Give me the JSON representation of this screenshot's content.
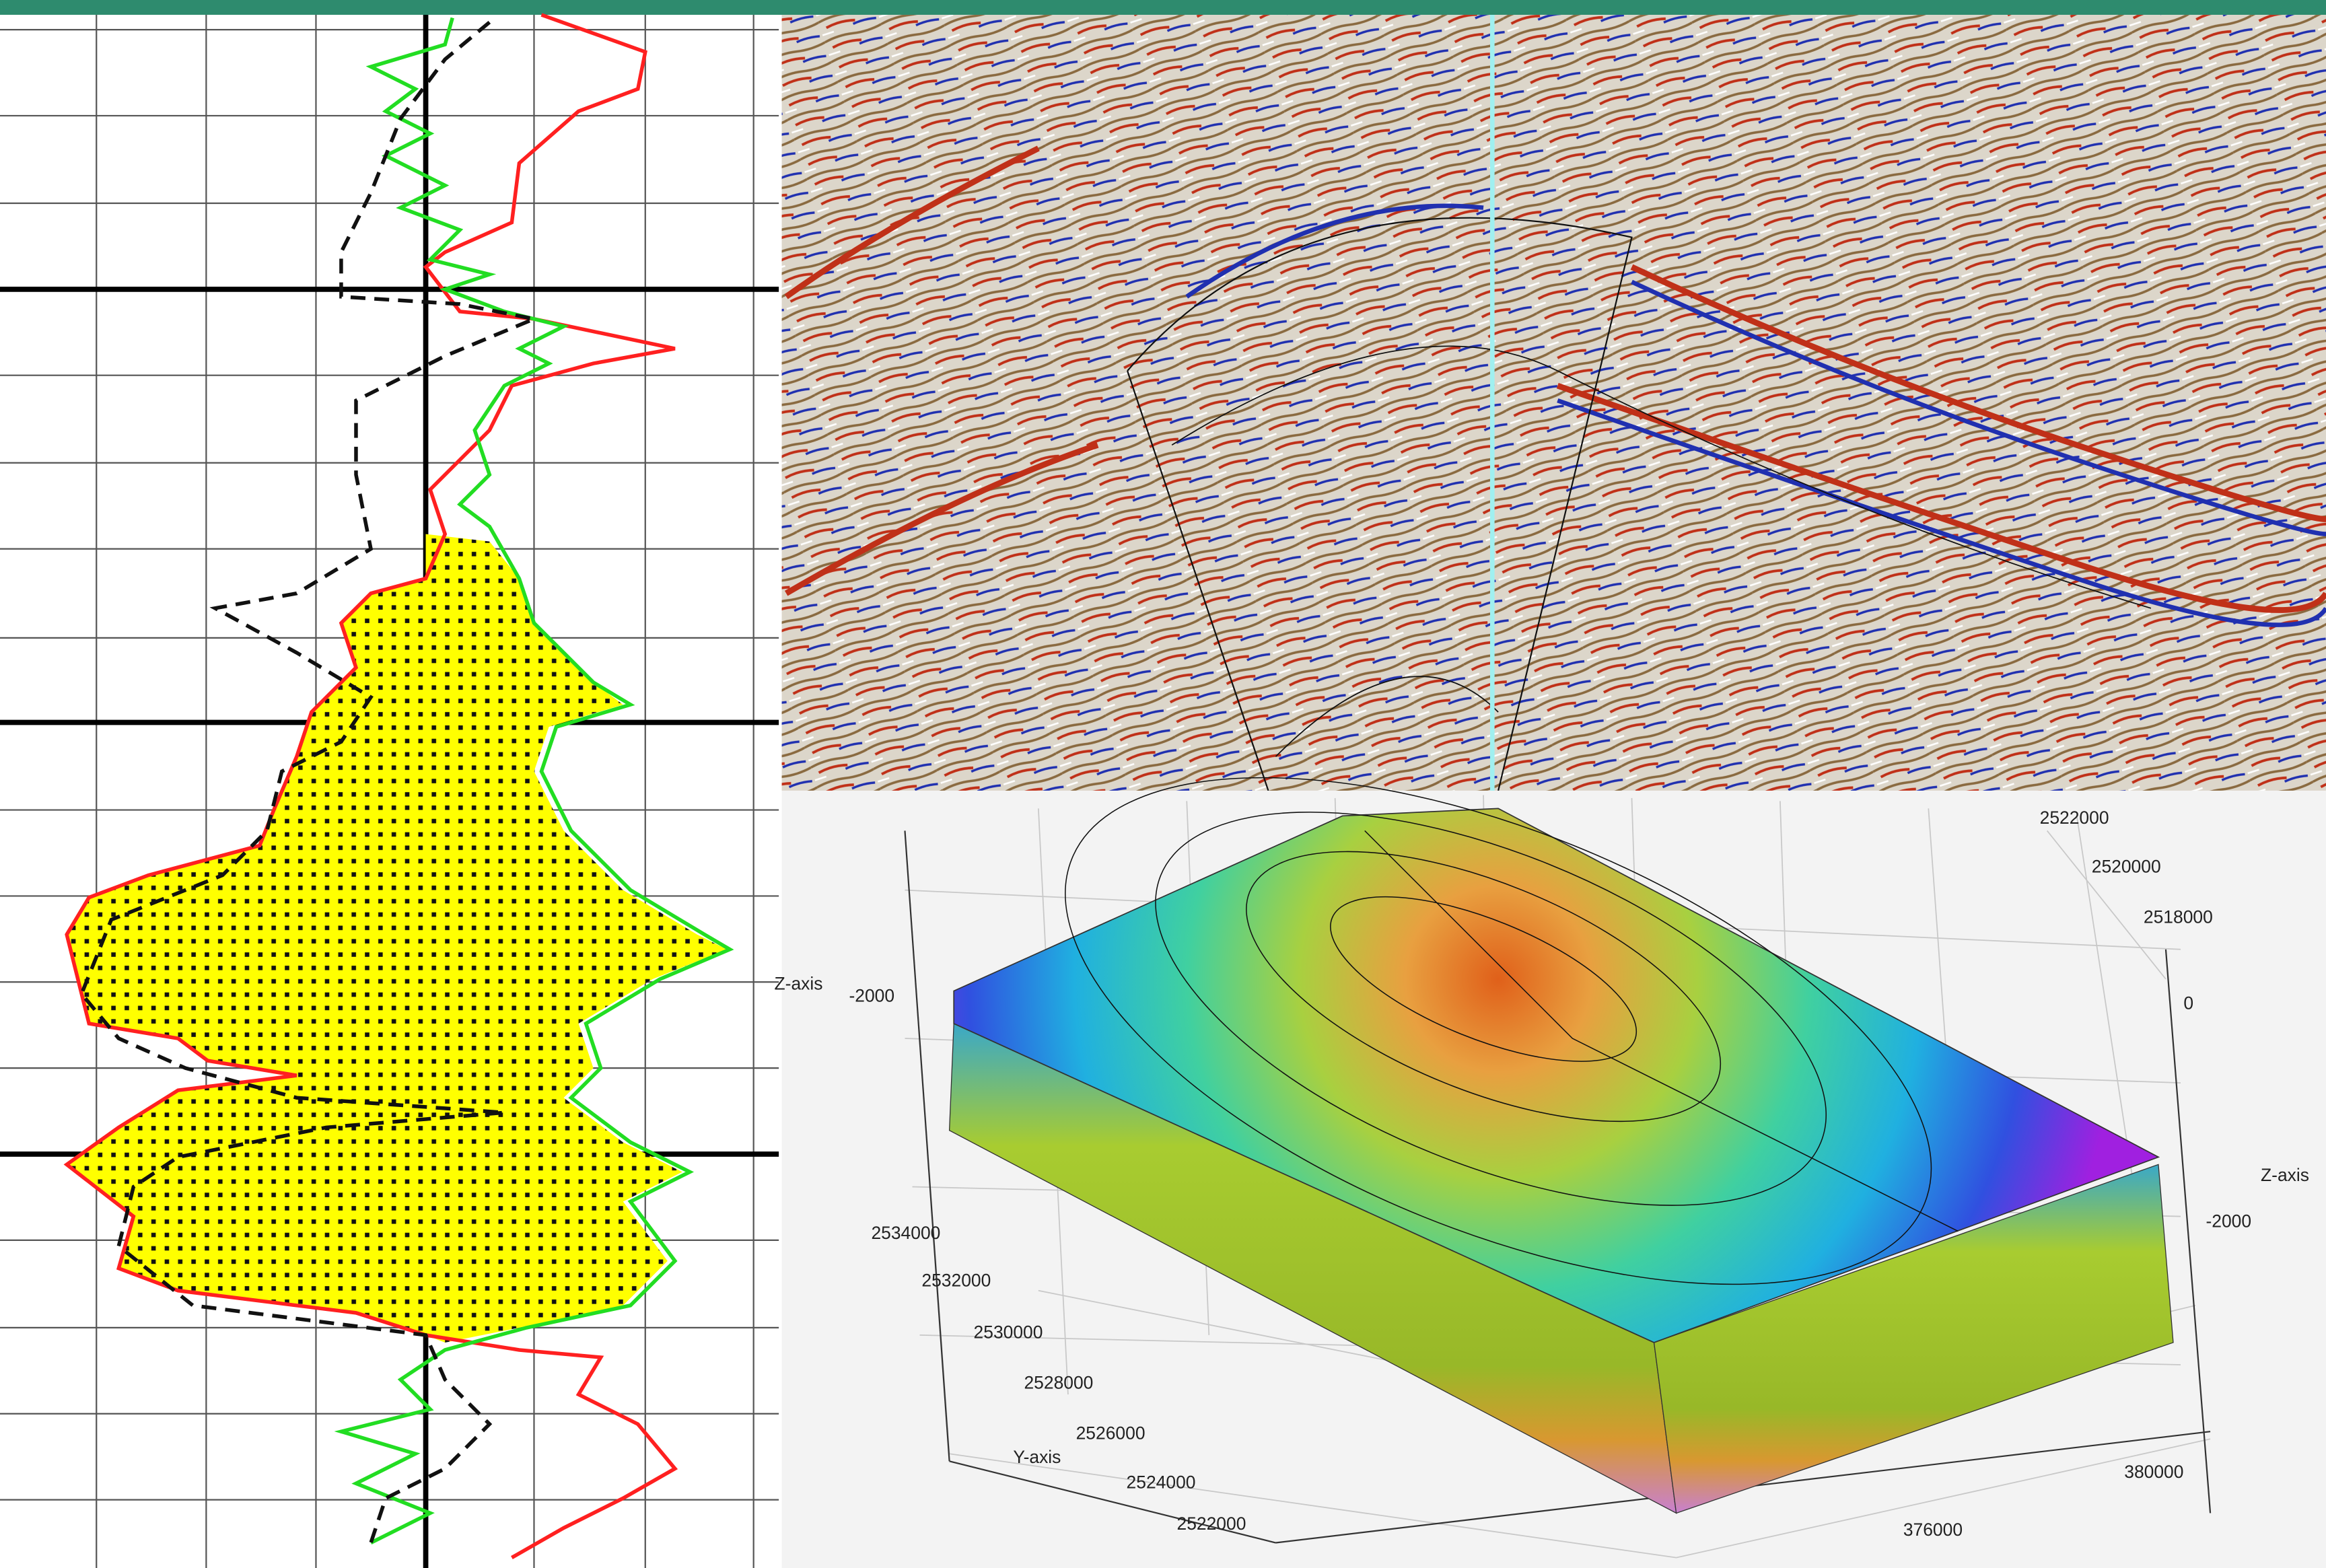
{
  "surface_plot": {
    "z_axis_label_left": "Z-axis",
    "z_ticks_left": [
      "-2000"
    ],
    "y_axis_label": "Y-axis",
    "y_ticks": [
      "2534000",
      "2532000",
      "2530000",
      "2528000",
      "2526000",
      "2524000",
      "2522000"
    ],
    "x_ticks_back": [
      "2522000",
      "2520000",
      "2518000"
    ],
    "z_ticks_right": [
      "0",
      "-2000"
    ],
    "z_axis_label_right": "Z-axis",
    "x_ticks": [
      "380000",
      "376000"
    ]
  }
}
